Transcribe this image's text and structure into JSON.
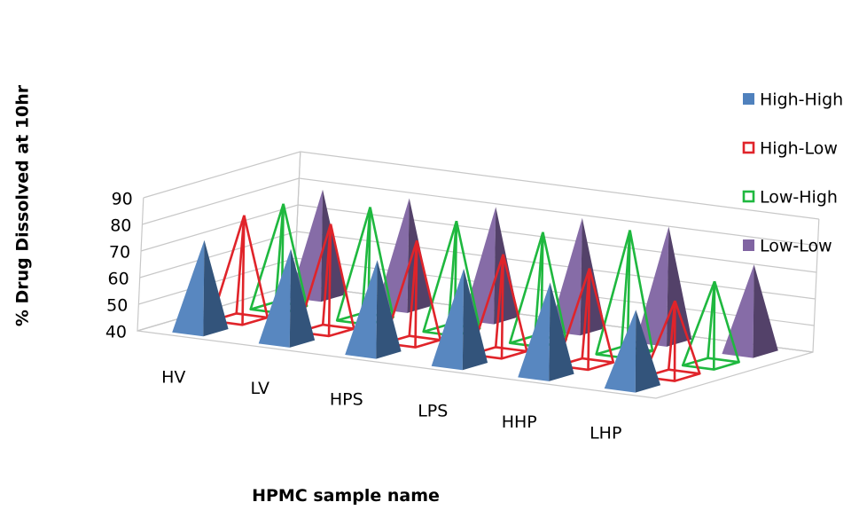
{
  "chart_data": {
    "type": "bar",
    "style": "3d-pyramid",
    "title": "",
    "xlabel": "HPMC sample name",
    "ylabel": "% Drug Dissolved at 10hr",
    "ylim": [
      40,
      90
    ],
    "yticks": [
      40,
      50,
      60,
      70,
      80,
      90
    ],
    "grid": true,
    "legend_position": "right",
    "categories": [
      "HV",
      "LV",
      "HPS",
      "LPS",
      "HHP",
      "LHP"
    ],
    "series": [
      {
        "name": "High-High",
        "color": "#4f81bd",
        "render": "solid",
        "values": [
          74,
          75,
          75,
          76,
          75,
          69
        ]
      },
      {
        "name": "High-Low",
        "color": "#e0242a",
        "render": "wireframe",
        "values": [
          79,
          80,
          78,
          77,
          76,
          68
        ]
      },
      {
        "name": "Low-High",
        "color": "#1fb83f",
        "render": "wireframe",
        "values": [
          79,
          82,
          81,
          81,
          86,
          71
        ]
      },
      {
        "name": "Low-Low",
        "color": "#8064a2",
        "render": "solid",
        "values": [
          80,
          81,
          82,
          82,
          83,
          73
        ]
      }
    ]
  }
}
